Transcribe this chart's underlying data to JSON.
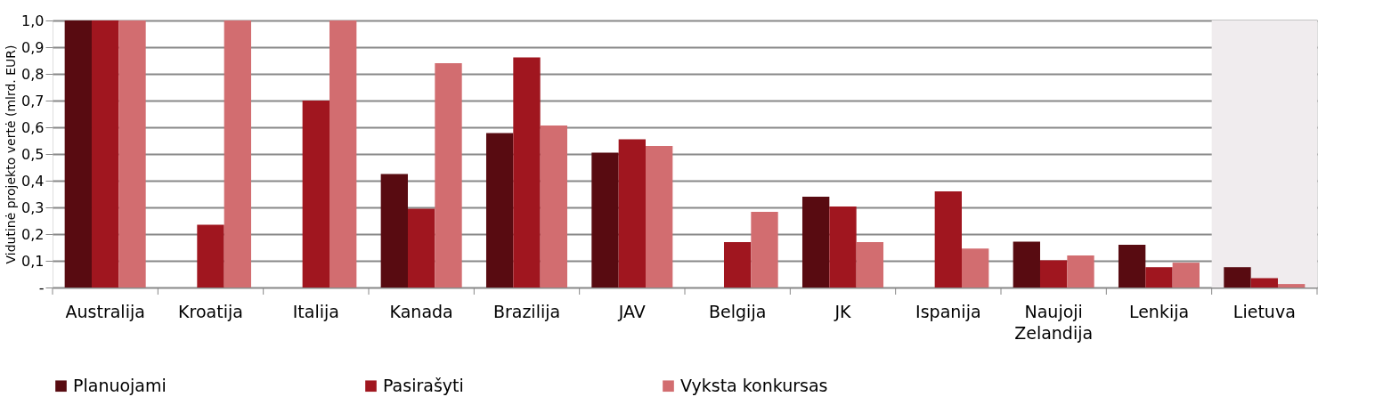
{
  "chart_data": {
    "type": "bar",
    "ylabel": "Vidutinė projekto vertė (mlrd. EUR)",
    "categories": [
      "Australija",
      "Kroatija",
      "Italija",
      "Kanada",
      "Brazilija",
      "JAV",
      "Belgija",
      "JK",
      "Ispanija",
      "Naujoji Zelandija",
      "Lenkija",
      "Lietuva"
    ],
    "series": [
      {
        "name": "Planuojami",
        "color": "#580b11",
        "values": [
          1.0,
          null,
          null,
          0.425,
          0.578,
          0.505,
          null,
          0.34,
          null,
          0.172,
          0.16,
          0.076
        ]
      },
      {
        "name": "Pasirašyti",
        "color": "#a0161f",
        "values": [
          1.0,
          0.235,
          0.7,
          0.295,
          0.862,
          0.555,
          0.17,
          0.303,
          0.36,
          0.102,
          0.076,
          0.035
        ]
      },
      {
        "name": "Vyksta konkursas",
        "color": "#d26d70",
        "values": [
          1.0,
          1.0,
          1.0,
          0.84,
          0.607,
          0.53,
          0.283,
          0.17,
          0.146,
          0.12,
          0.093,
          0.013
        ]
      }
    ],
    "ylim": [
      0,
      1.0
    ],
    "yticks": [
      {
        "value": 0,
        "label": "-"
      },
      {
        "value": 0.1,
        "label": "0,1"
      },
      {
        "value": 0.2,
        "label": "0,2"
      },
      {
        "value": 0.3,
        "label": "0,3"
      },
      {
        "value": 0.4,
        "label": "0,4"
      },
      {
        "value": 0.5,
        "label": "0,5"
      },
      {
        "value": 0.6,
        "label": "0,6"
      },
      {
        "value": 0.7,
        "label": "0,7"
      },
      {
        "value": 0.8,
        "label": "0,8"
      },
      {
        "value": 0.9,
        "label": "0,9"
      },
      {
        "value": 1.0,
        "label": "1,0"
      }
    ],
    "bands": [
      {
        "axis": "x",
        "from": "Lietuva",
        "to": "Lietuva",
        "color": "#f0ecee"
      }
    ],
    "grid": "y",
    "legend": "bottom"
  }
}
